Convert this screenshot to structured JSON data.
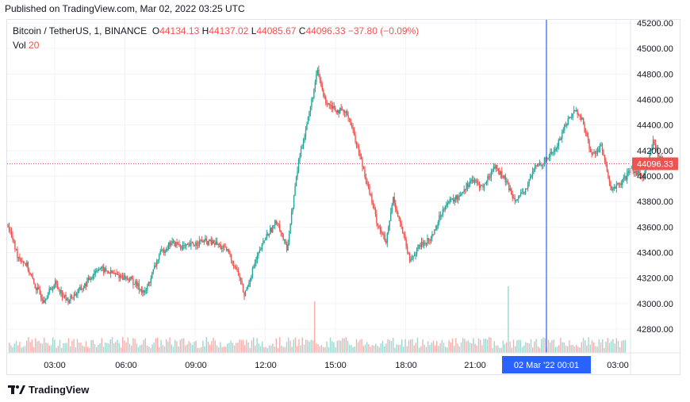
{
  "published": "Published on TradingView.com, Mar 02, 2022 03:25 UTC",
  "symbol": "Bitcoin / TetherUS, 1, BINANCE",
  "ohlc": {
    "o_label": "O",
    "o": "44134.13",
    "h_label": "H",
    "h": "44137.02",
    "l_label": "L",
    "l": "44085.67",
    "c_label": "C",
    "c": "44096.33",
    "change": "−37.80 (−0.09%)"
  },
  "volume": {
    "label": "Vol",
    "value": "20"
  },
  "footer": {
    "brand": "TradingView",
    "logo_icon": "tradingview-logo-icon"
  },
  "colors": {
    "up": "#26a69a",
    "down": "#ef5350",
    "crosshair": "#2962ff",
    "price_line": "#ef5350",
    "grid": "#f0f3fa"
  },
  "chart_data": {
    "type": "candlestick",
    "x_tick_labels": [
      "03:00",
      "06:00",
      "09:00",
      "12:00",
      "15:00",
      "18:00",
      "21:00",
      "02 Mar '22  00:01",
      "03:00"
    ],
    "crosshair_label": "02 Mar '22  00:01",
    "y_tick_labels": [
      "45200.00",
      "45000.00",
      "44800.00",
      "44600.00",
      "44400.00",
      "44200.00",
      "44000.00",
      "43800.00",
      "43600.00",
      "43400.00",
      "43200.00",
      "43000.00",
      "42800.00"
    ],
    "y_ticks": [
      45200,
      45000,
      44800,
      44600,
      44400,
      44200,
      44000,
      43800,
      43600,
      43400,
      43200,
      43000,
      42800
    ],
    "ylim": [
      42600,
      45200
    ],
    "last_price_label": "44096.33",
    "last_price": 44096.33,
    "close_path": [
      {
        "hour": 0.0,
        "price": 43620
      },
      {
        "hour": 0.4,
        "price": 43380
      },
      {
        "hour": 0.8,
        "price": 43300
      },
      {
        "hour": 1.1,
        "price": 43150
      },
      {
        "hour": 1.5,
        "price": 43030
      },
      {
        "hour": 2.0,
        "price": 43160
      },
      {
        "hour": 2.5,
        "price": 43020
      },
      {
        "hour": 3.2,
        "price": 43130
      },
      {
        "hour": 3.8,
        "price": 43280
      },
      {
        "hour": 4.5,
        "price": 43230
      },
      {
        "hour": 5.2,
        "price": 43190
      },
      {
        "hour": 5.8,
        "price": 43080
      },
      {
        "hour": 6.4,
        "price": 43380
      },
      {
        "hour": 6.9,
        "price": 43480
      },
      {
        "hour": 7.5,
        "price": 43440
      },
      {
        "hour": 8.2,
        "price": 43490
      },
      {
        "hour": 8.8,
        "price": 43470
      },
      {
        "hour": 9.3,
        "price": 43410
      },
      {
        "hour": 9.8,
        "price": 43210
      },
      {
        "hour": 10.0,
        "price": 43060
      },
      {
        "hour": 10.4,
        "price": 43290
      },
      {
        "hour": 10.9,
        "price": 43520
      },
      {
        "hour": 11.4,
        "price": 43650
      },
      {
        "hour": 11.8,
        "price": 43420
      },
      {
        "hour": 12.3,
        "price": 44120
      },
      {
        "hour": 12.7,
        "price": 44450
      },
      {
        "hour": 13.1,
        "price": 44820
      },
      {
        "hour": 13.4,
        "price": 44600
      },
      {
        "hour": 13.9,
        "price": 44520
      },
      {
        "hour": 14.4,
        "price": 44480
      },
      {
        "hour": 14.8,
        "price": 44220
      },
      {
        "hour": 15.2,
        "price": 43950
      },
      {
        "hour": 15.6,
        "price": 43650
      },
      {
        "hour": 16.0,
        "price": 43470
      },
      {
        "hour": 16.3,
        "price": 43830
      },
      {
        "hour": 16.7,
        "price": 43560
      },
      {
        "hour": 17.0,
        "price": 43330
      },
      {
        "hour": 17.4,
        "price": 43450
      },
      {
        "hour": 17.9,
        "price": 43510
      },
      {
        "hour": 18.5,
        "price": 43780
      },
      {
        "hour": 19.0,
        "price": 43830
      },
      {
        "hour": 19.6,
        "price": 43970
      },
      {
        "hour": 20.1,
        "price": 43910
      },
      {
        "hour": 20.6,
        "price": 44080
      },
      {
        "hour": 21.0,
        "price": 43980
      },
      {
        "hour": 21.4,
        "price": 43830
      },
      {
        "hour": 21.8,
        "price": 43850
      },
      {
        "hour": 22.3,
        "price": 44070
      },
      {
        "hour": 22.7,
        "price": 44120
      },
      {
        "hour": 23.2,
        "price": 44220
      },
      {
        "hour": 23.6,
        "price": 44410
      },
      {
        "hour": 24.0,
        "price": 44520
      },
      {
        "hour": 24.3,
        "price": 44440
      },
      {
        "hour": 24.7,
        "price": 44160
      },
      {
        "hour": 25.1,
        "price": 44240
      },
      {
        "hour": 25.5,
        "price": 43900
      },
      {
        "hour": 25.9,
        "price": 43930
      },
      {
        "hour": 26.4,
        "price": 44050
      },
      {
        "hour": 26.9,
        "price": 44000
      },
      {
        "hour": 27.3,
        "price": 44260
      },
      {
        "hour": 27.6,
        "price": 44150
      },
      {
        "hour": 27.8,
        "price": 44096.33
      }
    ]
  }
}
